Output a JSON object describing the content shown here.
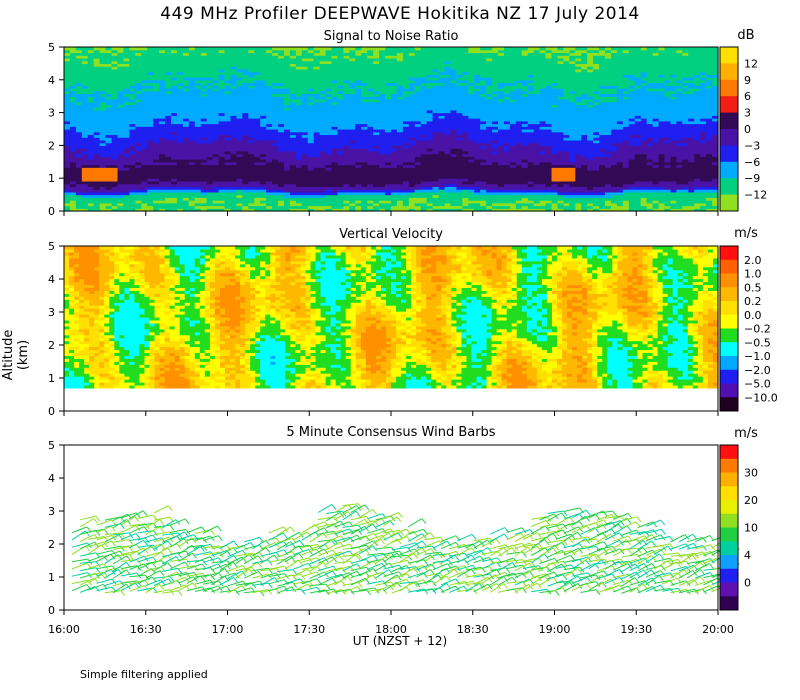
{
  "title": "449 MHz Profiler DEEPWAVE Hokitika NZ 17 July 2014",
  "y_axis_label": "Altitude (km)",
  "x_axis_label": "UT  (NZST + 12)",
  "footnote": "Simple filtering applied",
  "chart_data": [
    {
      "type": "heatmap",
      "title": "Signal to Noise Ratio",
      "unit": "dB",
      "x_range_hours": [
        16.0,
        20.0
      ],
      "ylim": [
        0,
        5
      ],
      "y_ticks": [
        "0",
        "1",
        "2",
        "3",
        "4",
        "5"
      ],
      "colorbar_ticks": [
        "12",
        "9",
        "6",
        "3",
        "0",
        "−3",
        "−6",
        "−9",
        "−12"
      ],
      "colorbar_colors": [
        "#ffe000",
        "#ffb000",
        "#ff7800",
        "#f01e14",
        "#330a55",
        "#4a13a5",
        "#1f1ff0",
        "#00aaff",
        "#00d080",
        "#90e020"
      ],
      "profile_km_to_db": [
        [
          0.3,
          -12
        ],
        [
          0.5,
          -10
        ],
        [
          0.7,
          -2
        ],
        [
          1.0,
          2
        ],
        [
          1.3,
          1
        ],
        [
          1.6,
          -1
        ],
        [
          2.0,
          -3
        ],
        [
          2.4,
          -5
        ],
        [
          2.8,
          -7
        ],
        [
          3.3,
          -8
        ],
        [
          3.9,
          -9.3
        ],
        [
          4.4,
          -10.6
        ],
        [
          5.0,
          -12
        ]
      ]
    },
    {
      "type": "heatmap",
      "title": "Vertical Velocity",
      "unit": "m/s",
      "x_range_hours": [
        16.0,
        20.0
      ],
      "ylim": [
        0,
        5
      ],
      "y_ticks": [
        "0",
        "1",
        "2",
        "3",
        "4",
        "5"
      ],
      "data_altitude_range_km": [
        0.7,
        5.0
      ],
      "colorbar_ticks": [
        "2.0",
        "1.0",
        "0.5",
        "0.2",
        "0.0",
        "−0.2",
        "−0.5",
        "−1.0",
        "−2.0",
        "−5.0",
        "−10.0"
      ],
      "colorbar_colors": [
        "#ff1010",
        "#ff6000",
        "#ff9000",
        "#ffb800",
        "#ffe000",
        "#ffff00",
        "#20dd20",
        "#00ffff",
        "#00aaff",
        "#1f1ff0",
        "#5010b0",
        "#200020"
      ]
    },
    {
      "type": "wind_barbs",
      "title": "5 Minute Consensus Wind Barbs",
      "unit": "m/s",
      "x_range_hours": [
        16.0,
        20.0
      ],
      "ylim": [
        0,
        5
      ],
      "y_ticks": [
        "0",
        "1",
        "2",
        "3",
        "4",
        "5"
      ],
      "data_altitude_range_km": [
        0.5,
        3.5
      ],
      "colorbar_ticks": [
        "30",
        "20",
        "10",
        "4",
        "0"
      ],
      "colorbar_colors": [
        "#ff1010",
        "#ff7a00",
        "#ffb000",
        "#ffe000",
        "#e8f000",
        "#90e020",
        "#20d040",
        "#00d0a0",
        "#10a0ff",
        "#2020f0",
        "#6010b0",
        "#300050"
      ]
    }
  ],
  "x_tick_labels": [
    "16:00",
    "16:30",
    "17:00",
    "17:30",
    "18:00",
    "18:30",
    "19:00",
    "19:30",
    "20:00"
  ]
}
